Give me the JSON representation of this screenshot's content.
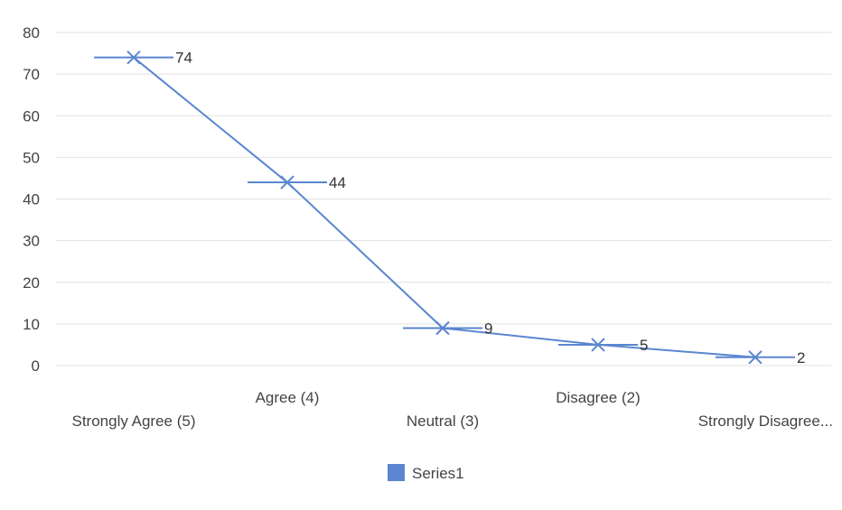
{
  "colors": {
    "series": "#5b86cf",
    "grid": "#e2e2e2",
    "text": "#444444"
  },
  "chart_data": {
    "type": "line",
    "title": "",
    "xlabel": "",
    "ylabel": "",
    "ylim": [
      0,
      80
    ],
    "yticks": [
      0,
      10,
      20,
      30,
      40,
      50,
      60,
      70,
      80
    ],
    "grid": true,
    "legend_position": "bottom",
    "marker": "x",
    "categories": [
      "Strongly Agree (5)",
      "Agree (4)",
      "Neutral (3)",
      "Disagree (2)",
      "Strongly Disagree..."
    ],
    "series": [
      {
        "name": "Series1",
        "values": [
          74,
          44,
          9,
          5,
          2
        ]
      }
    ],
    "data_labels": [
      "74",
      "44",
      "9",
      "5",
      "2"
    ]
  }
}
